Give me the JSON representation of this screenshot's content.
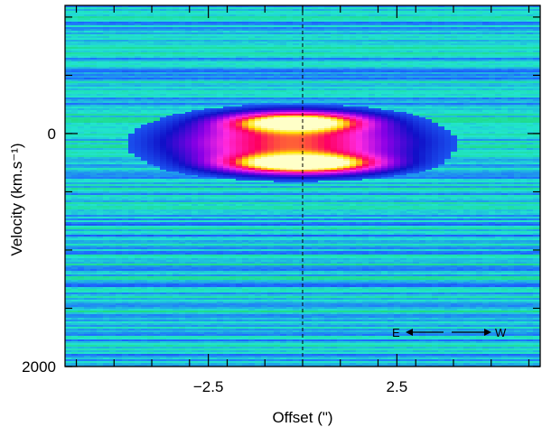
{
  "chart_data": {
    "type": "heatmap",
    "title": "",
    "xlabel": "Offset (\")",
    "ylabel": "Velocity (km.s⁻¹)",
    "x_tick_labels": [
      "−2.5",
      "2.5"
    ],
    "x_ticks": [
      -2.5,
      2.5
    ],
    "y_tick_labels": [
      "0",
      "2000"
    ],
    "y_ticks": [
      0,
      2000
    ],
    "xlim": [
      -6.3,
      6.3
    ],
    "ylim": [
      2000,
      -1100
    ],
    "y_axis_inverted": true,
    "colormap": [
      "#1ed86e",
      "#21e4cf",
      "#1e6cff",
      "#1010c8",
      "#8a00e6",
      "#ff2ae0",
      "#ff0060",
      "#ffe000",
      "#ffffc8"
    ],
    "reference_line": {
      "x": 0,
      "style": "dashed",
      "color": "#000000"
    },
    "emission": {
      "components": [
        {
          "x": -0.15,
          "y": -100,
          "peak": 0.92,
          "x_sigma": 1.2,
          "y_sigma": 55
        },
        {
          "x": 0.0,
          "y": 260,
          "peak": 1.0,
          "x_sigma": 1.35,
          "y_sigma": 55
        },
        {
          "x": -0.3,
          "y": 80,
          "peak": 0.72,
          "x_sigma": 2.1,
          "y_sigma": 150
        }
      ],
      "peak_position": {
        "x": 0.0,
        "y": 260
      }
    },
    "annotation": {
      "left": "E",
      "right": "W"
    }
  }
}
